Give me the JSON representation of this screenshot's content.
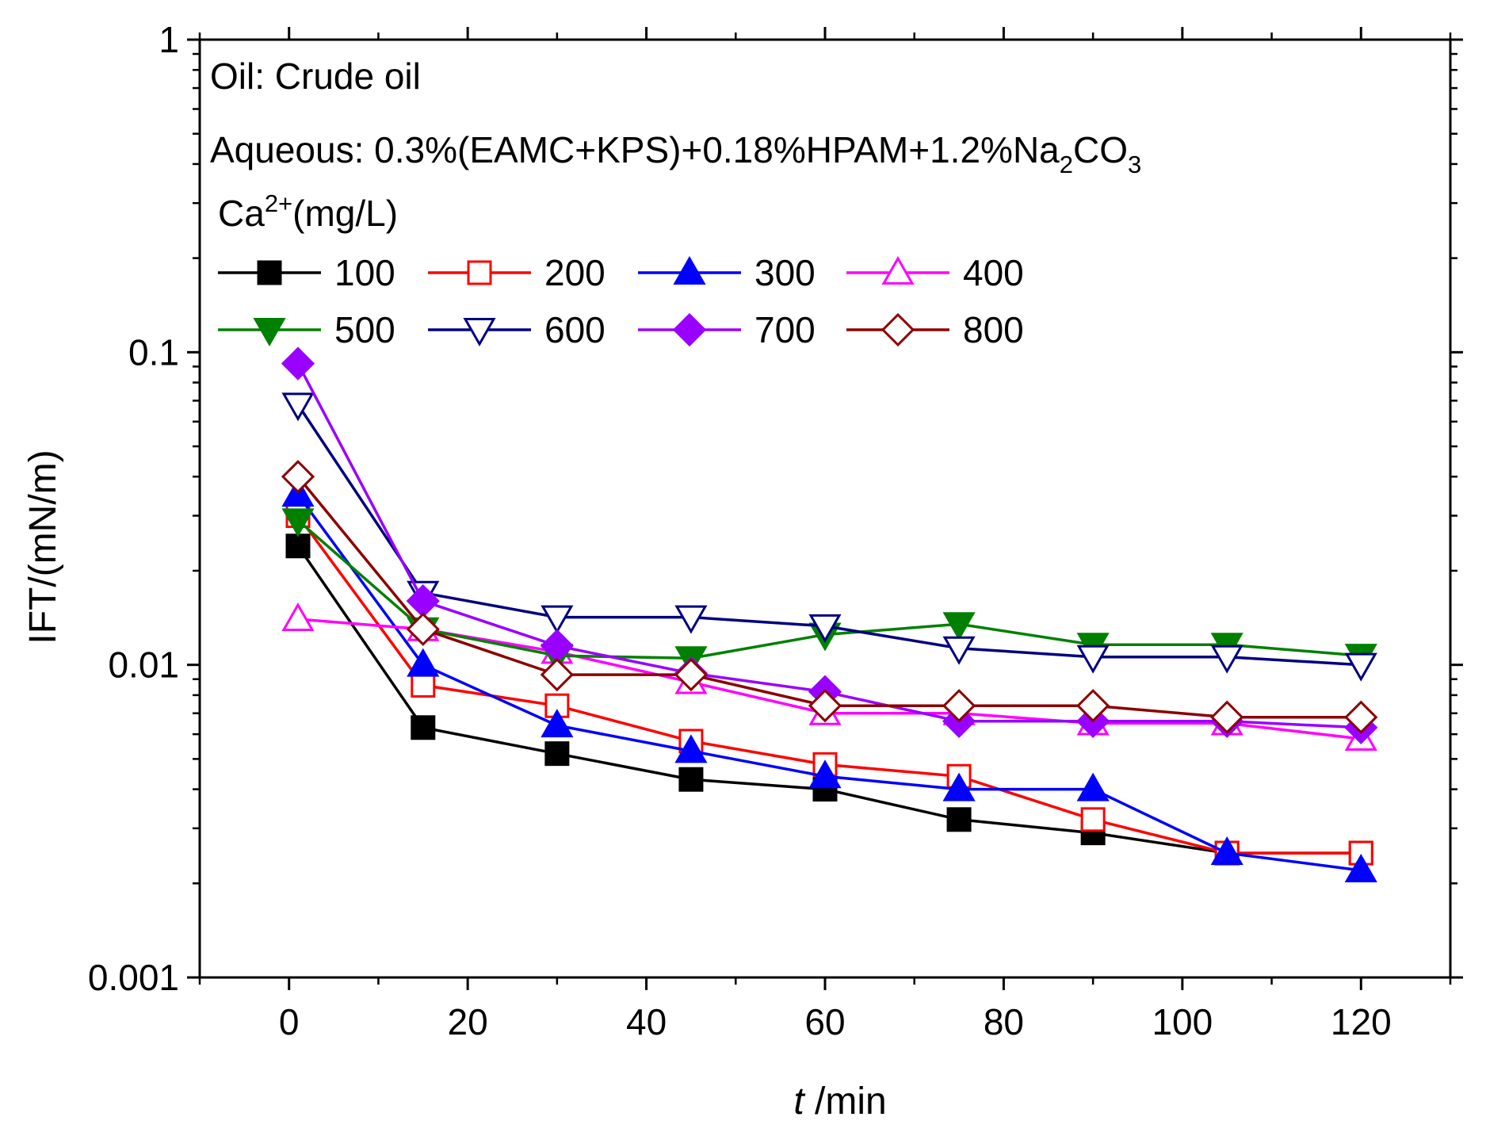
{
  "chart_data": {
    "type": "line",
    "title": "",
    "xlabel_italic": "t",
    "xlabel_rest": " /min",
    "ylabel": "IFT/(mN/m)",
    "x": [
      1,
      15,
      30,
      45,
      60,
      75,
      90,
      105,
      120
    ],
    "xlim": [
      -10,
      130
    ],
    "ylim": [
      0.001,
      1
    ],
    "yscale": "log",
    "x_ticks": [
      0,
      20,
      40,
      60,
      80,
      100,
      120
    ],
    "x_tick_labels": [
      "0",
      "20",
      "40",
      "60",
      "80",
      "100",
      "120"
    ],
    "y_ticks": [
      0.001,
      0.01,
      0.1,
      1
    ],
    "y_tick_labels": [
      "0.001",
      "0.01",
      "0.1",
      "1"
    ],
    "grid": false,
    "legend_position": "top-left",
    "annotations": {
      "oil": "Oil: Crude oil",
      "aqueous_main": "Aqueous: 0.3%(EAMC+KPS)+0.18%HPAM+1.2%Na",
      "aqueous_sub1": "2",
      "aqueous_mid": "CO",
      "aqueous_sub2": "3",
      "legend_title_main": "Ca",
      "legend_title_sup": "2+",
      "legend_title_rest": "(mg/L)"
    },
    "series": [
      {
        "name": "100",
        "color": "#000000",
        "marker": "square",
        "filled": true,
        "values": [
          0.024,
          0.0063,
          0.0052,
          0.0043,
          0.004,
          0.0032,
          0.0029,
          0.0025,
          0.0025
        ]
      },
      {
        "name": "200",
        "color": "#ff0000",
        "marker": "square",
        "filled": false,
        "values": [
          0.03,
          0.0086,
          0.0074,
          0.0057,
          0.0048,
          0.0044,
          0.0032,
          0.0025,
          0.0025
        ]
      },
      {
        "name": "300",
        "color": "#0000ff",
        "marker": "triangle-up",
        "filled": true,
        "values": [
          0.035,
          0.01,
          0.0064,
          0.0053,
          0.0044,
          0.004,
          0.004,
          0.0025,
          0.0022
        ]
      },
      {
        "name": "400",
        "color": "#ff00ff",
        "marker": "triangle-up",
        "filled": false,
        "values": [
          0.014,
          0.013,
          0.011,
          0.0088,
          0.007,
          0.007,
          0.0065,
          0.0065,
          0.0058
        ]
      },
      {
        "name": "500",
        "color": "#008000",
        "marker": "triangle-down",
        "filled": true,
        "values": [
          0.029,
          0.013,
          0.0107,
          0.0105,
          0.0125,
          0.0135,
          0.0116,
          0.0116,
          0.0107
        ]
      },
      {
        "name": "600",
        "color": "#000080",
        "marker": "triangle-down",
        "filled": false,
        "values": [
          0.068,
          0.017,
          0.0142,
          0.0142,
          0.0133,
          0.0113,
          0.0106,
          0.0106,
          0.01
        ]
      },
      {
        "name": "700",
        "color": "#9900ff",
        "marker": "diamond",
        "filled": true,
        "values": [
          0.092,
          0.016,
          0.0115,
          0.0094,
          0.0082,
          0.0066,
          0.0066,
          0.0066,
          0.0063
        ]
      },
      {
        "name": "800",
        "color": "#8b0000",
        "marker": "diamond",
        "filled": false,
        "values": [
          0.04,
          0.013,
          0.0093,
          0.0093,
          0.0074,
          0.0074,
          0.0074,
          0.0068,
          0.0068
        ]
      }
    ]
  }
}
